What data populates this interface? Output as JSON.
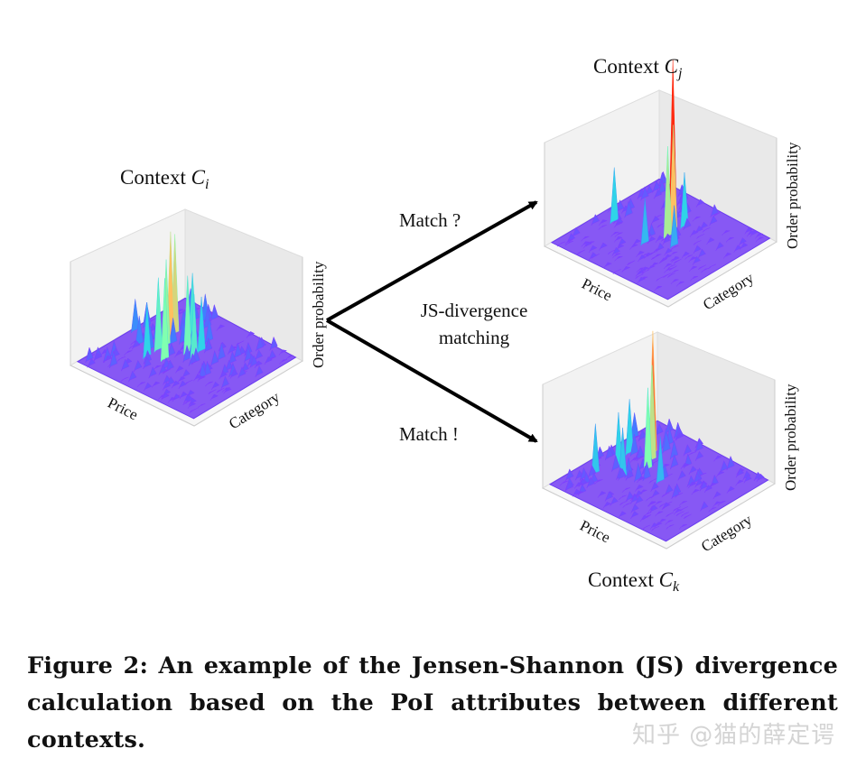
{
  "figure": {
    "plots": [
      {
        "id": "ci",
        "title_prefix": "Context",
        "symbol": "C",
        "subscript": "i",
        "x_label": "Price",
        "y_label": "Category",
        "z_label": "Order probability"
      },
      {
        "id": "cj",
        "title_prefix": "Context",
        "symbol": "C",
        "subscript": "j",
        "x_label": "Price",
        "y_label": "Category",
        "z_label": "Order probability"
      },
      {
        "id": "ck",
        "title_prefix": "Context",
        "symbol": "C",
        "subscript": "k",
        "x_label": "Price",
        "y_label": "Category",
        "z_label": "Order probability"
      }
    ],
    "arrows": {
      "top_label": "Match ?",
      "bottom_label": "Match !",
      "middle_line1": "JS-divergence",
      "middle_line2": "matching"
    },
    "colormap": [
      "#7f3fff",
      "#3f7fff",
      "#2fd4e8",
      "#80ffb0",
      "#ffc060",
      "#ff2a10"
    ]
  },
  "caption": "Figure 2: An example of the Jensen-Shannon (JS) divergence calculation based on the PoI attributes between different contexts.",
  "watermark": "知乎 @猫的薛定谔"
}
